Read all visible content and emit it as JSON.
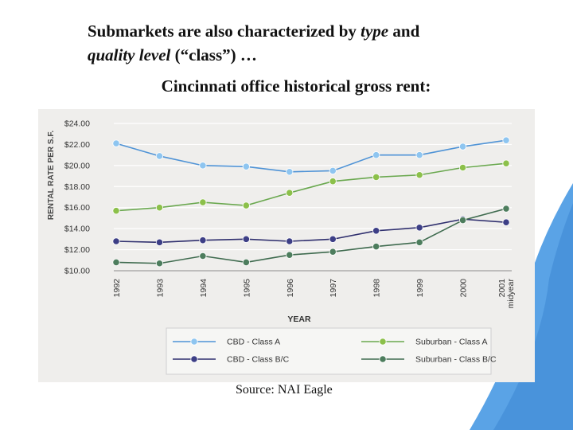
{
  "slide": {
    "title_line1_a": "Submarkets are also characterized by ",
    "title_line1_em": "type",
    "title_line1_b": " and",
    "title_line2_em": "quality level",
    "title_line2_b": " (“class”) …",
    "subtitle": "Cincinnati office historical gross rent:",
    "source": "Source: NAI Eagle",
    "accent_color": "#5aa3e6"
  },
  "chart_data": {
    "type": "line",
    "title": "",
    "xlabel": "YEAR",
    "ylabel": "RENTAL RATE PER S.F.",
    "ylim": [
      10,
      24
    ],
    "y_ticks": [
      "$10.00",
      "$12.00",
      "$14.00",
      "$16.00",
      "$18.00",
      "$20.00",
      "$22.00",
      "$24.00"
    ],
    "categories": [
      "1992",
      "1993",
      "1994",
      "1995",
      "1996",
      "1997",
      "1998",
      "1999",
      "2000",
      "2001 midyear"
    ],
    "grid": true,
    "legend_position": "bottom",
    "series": [
      {
        "name": "CBD - Class A",
        "color": "#4f93d6",
        "marker": "#8ec5f0",
        "values": [
          22.1,
          20.9,
          20.0,
          19.9,
          19.4,
          19.5,
          21.0,
          21.0,
          21.8,
          22.4
        ]
      },
      {
        "name": "Suburban - Class A",
        "color": "#6aa84f",
        "marker": "#8cc04a",
        "values": [
          15.7,
          16.0,
          16.5,
          16.2,
          17.4,
          18.5,
          18.9,
          19.1,
          19.8,
          20.2
        ]
      },
      {
        "name": "CBD - Class B/C",
        "color": "#2f2f6e",
        "marker": "#3d3f86",
        "values": [
          12.8,
          12.7,
          12.9,
          13.0,
          12.8,
          13.0,
          13.8,
          14.1,
          14.9,
          14.6
        ]
      },
      {
        "name": "Suburban - Class B/C",
        "color": "#3f6b4f",
        "marker": "#4d7d5d",
        "values": [
          10.8,
          10.7,
          11.4,
          10.8,
          11.5,
          11.8,
          12.3,
          12.7,
          14.8,
          15.9
        ]
      }
    ]
  }
}
